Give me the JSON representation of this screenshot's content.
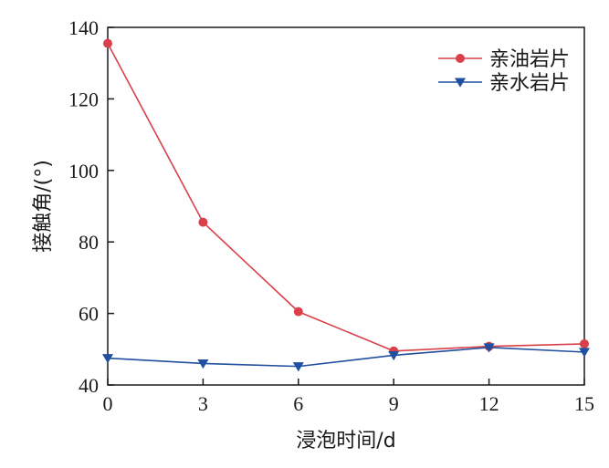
{
  "chart_data": {
    "type": "line",
    "title": "",
    "xlabel": "浸泡时间/d",
    "ylabel": "接触角/(°)",
    "x": [
      0,
      3,
      6,
      9,
      12,
      15
    ],
    "x_ticks": [
      "0",
      "3",
      "6",
      "9",
      "12",
      "15"
    ],
    "y_ticks": [
      "40",
      "60",
      "80",
      "100",
      "120",
      "140"
    ],
    "xlim": [
      0,
      15
    ],
    "ylim": [
      40,
      140
    ],
    "grid": false,
    "legend_position": "top-right",
    "series": [
      {
        "name": "亲油岩片",
        "values": [
          135.5,
          85.5,
          60.5,
          49.5,
          50.8,
          51.5
        ],
        "color": "#d9404a",
        "marker": "circle"
      },
      {
        "name": "亲水岩片",
        "values": [
          47.5,
          46.0,
          45.2,
          48.3,
          50.5,
          49.2
        ],
        "color": "#1f4f9e",
        "marker": "triangle-down"
      }
    ]
  }
}
